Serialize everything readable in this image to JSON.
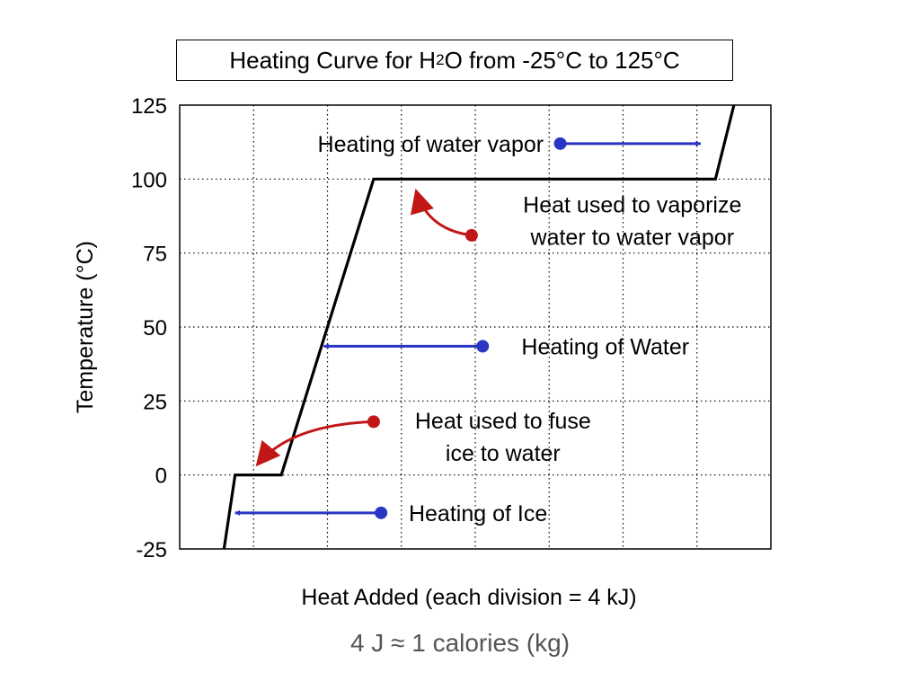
{
  "title": {
    "prefix": "Heating Curve for H",
    "subscript": "2",
    "suffix": "O from -25°C to 125°C"
  },
  "note": "4 J ≈ 1 calories (kg)",
  "colors": {
    "curve": "#000000",
    "blue_arrow": "#2a35c4",
    "red_arrow": "#c21717",
    "grid": "#000000",
    "note_text": "#555555"
  },
  "chart_data": {
    "type": "line",
    "title": "Heating Curve for H2O from -25°C to 125°C",
    "xlabel": "Heat Added (each division = 4 kJ)",
    "ylabel": "Temperature (°C)",
    "xlim": [
      0,
      32
    ],
    "ylim": [
      -25,
      125
    ],
    "yticks": [
      "125",
      "100",
      "75",
      "50",
      "25",
      "0",
      "-25"
    ],
    "ytick_values": [
      125,
      100,
      75,
      50,
      25,
      0,
      -25
    ],
    "xgrid_values": [
      4,
      8,
      12,
      16,
      20,
      24,
      28
    ],
    "grid": true,
    "series": [
      {
        "x": [
          2.4,
          3.0,
          5.5,
          10.5,
          29.0,
          30.0
        ],
        "y": [
          -25,
          0,
          0,
          100,
          100,
          125
        ]
      }
    ],
    "annotations": [
      {
        "id": "vapor",
        "lines": [
          "Heating of water vapor"
        ],
        "color": "blue",
        "text_x": 19.7,
        "text_y": 112,
        "align": "end",
        "dot": [
          20.6,
          112
        ],
        "tip": [
          28.2,
          112
        ],
        "curve": false
      },
      {
        "id": "vaporize",
        "lines": [
          "Heat used to vaporize",
          "water to water vapor"
        ],
        "color": "red",
        "text_x": 24.5,
        "text_y": 86,
        "align": "middle",
        "dot": [
          15.8,
          81
        ],
        "tip": [
          12.8,
          96
        ],
        "curve": true,
        "bend": [
          13.4,
          83
        ]
      },
      {
        "id": "water",
        "lines": [
          "Heating of Water"
        ],
        "color": "blue",
        "text_x": 18.5,
        "text_y": 43.5,
        "align": "start",
        "dot": [
          16.4,
          43.5
        ],
        "tip": [
          7.8,
          43.5
        ],
        "curve": false
      },
      {
        "id": "fuse",
        "lines": [
          "Heat used to fuse",
          "ice to water"
        ],
        "color": "red",
        "text_x": 17.5,
        "text_y": 13,
        "align": "middle",
        "dot": [
          10.5,
          18
        ],
        "tip": [
          4.2,
          3.5
        ],
        "curve": true,
        "bend": [
          6.0,
          17
        ]
      },
      {
        "id": "ice",
        "lines": [
          "Heating of Ice"
        ],
        "color": "blue",
        "text_x": 12.4,
        "text_y": -12.8,
        "align": "start",
        "dot": [
          10.9,
          -12.8
        ],
        "tip": [
          3.0,
          -12.8
        ],
        "curve": false
      }
    ]
  }
}
